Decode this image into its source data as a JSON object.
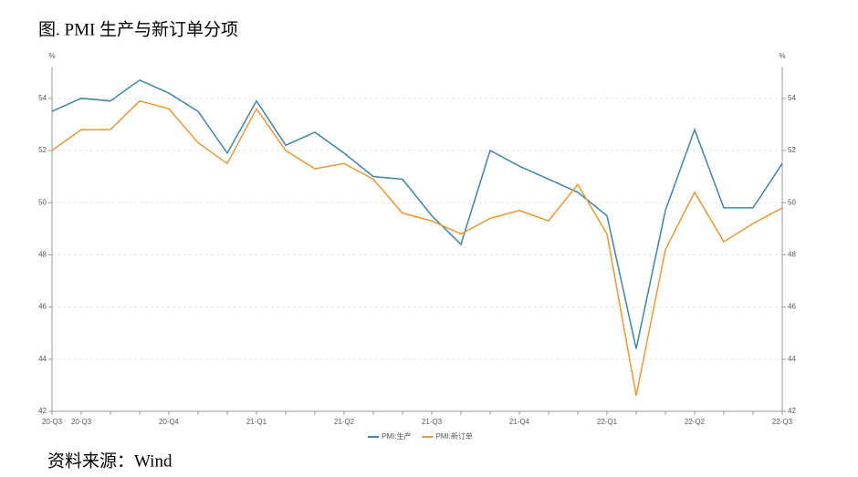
{
  "chart_data": {
    "type": "line",
    "title": "图. PMI 生产与新订单分项",
    "source": "资料来源：Wind",
    "ylabel": "%",
    "y2label": "%",
    "categories": [
      "20-Q3",
      "20-Q3",
      null,
      null,
      "20-Q4",
      null,
      null,
      "21-Q1",
      null,
      null,
      "21-Q2",
      null,
      null,
      "21-Q3",
      null,
      null,
      "21-Q4",
      null,
      null,
      "22-Q1",
      null,
      null,
      "22-Q2",
      null,
      null,
      "22-Q3"
    ],
    "series": [
      {
        "name": "PMI:生产",
        "color": "#3a86a8",
        "values": [
          53.5,
          54.0,
          53.9,
          54.7,
          54.2,
          53.5,
          51.9,
          53.9,
          52.2,
          52.7,
          51.9,
          51.0,
          50.9,
          49.5,
          48.4,
          52.0,
          51.4,
          50.9,
          50.4,
          49.5,
          44.4,
          49.7,
          52.8,
          49.8,
          49.8,
          51.5
        ]
      },
      {
        "name": "PMI:新订单",
        "color": "#f0962e",
        "values": [
          52.0,
          52.8,
          52.8,
          53.9,
          53.6,
          52.3,
          51.5,
          53.6,
          52.0,
          51.3,
          51.5,
          50.9,
          49.6,
          49.3,
          48.8,
          49.4,
          49.7,
          49.3,
          50.7,
          48.8,
          42.6,
          48.2,
          50.4,
          48.5,
          49.2,
          49.8
        ]
      }
    ],
    "ylim": [
      42,
      55.2
    ],
    "yticks": [
      42,
      44,
      46,
      48,
      50,
      52,
      54
    ],
    "y2lim": [
      42,
      55.2
    ],
    "y2ticks": [
      42,
      44,
      46,
      48,
      50,
      52,
      54
    ],
    "grid": true,
    "legend": "bottom"
  }
}
